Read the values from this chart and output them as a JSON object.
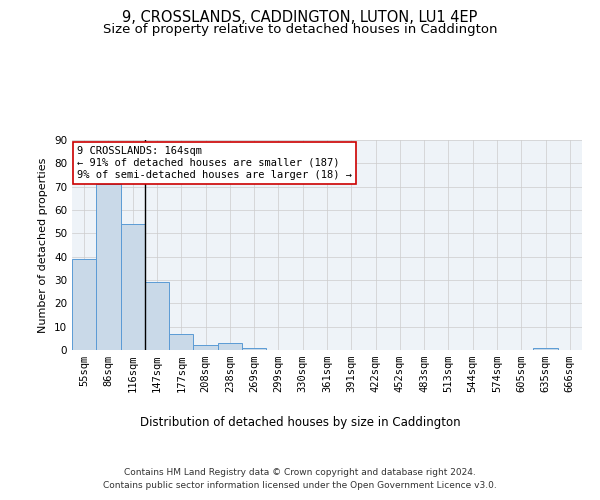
{
  "title_line1": "9, CROSSLANDS, CADDINGTON, LUTON, LU1 4EP",
  "title_line2": "Size of property relative to detached houses in Caddington",
  "xlabel": "Distribution of detached houses by size in Caddington",
  "ylabel": "Number of detached properties",
  "categories": [
    "55sqm",
    "86sqm",
    "116sqm",
    "147sqm",
    "177sqm",
    "208sqm",
    "238sqm",
    "269sqm",
    "299sqm",
    "330sqm",
    "361sqm",
    "391sqm",
    "422sqm",
    "452sqm",
    "483sqm",
    "513sqm",
    "544sqm",
    "574sqm",
    "605sqm",
    "635sqm",
    "666sqm"
  ],
  "values": [
    39,
    71,
    54,
    29,
    7,
    2,
    3,
    1,
    0,
    0,
    0,
    0,
    0,
    0,
    0,
    0,
    0,
    0,
    0,
    1,
    0
  ],
  "bar_color": "#c9d9e8",
  "bar_edge_color": "#5b9bd5",
  "marker_line_index": 3,
  "annotation_text": "9 CROSSLANDS: 164sqm\n← 91% of detached houses are smaller (187)\n9% of semi-detached houses are larger (18) →",
  "annotation_box_color": "#ffffff",
  "annotation_box_edge": "#cc0000",
  "ylim": [
    0,
    90
  ],
  "yticks": [
    0,
    10,
    20,
    30,
    40,
    50,
    60,
    70,
    80,
    90
  ],
  "grid_color": "#cccccc",
  "bg_color": "#eef3f8",
  "footer_line1": "Contains HM Land Registry data © Crown copyright and database right 2024.",
  "footer_line2": "Contains public sector information licensed under the Open Government Licence v3.0.",
  "title_fontsize": 10.5,
  "subtitle_fontsize": 9.5,
  "xlabel_fontsize": 8.5,
  "ylabel_fontsize": 8,
  "tick_fontsize": 7.5,
  "annot_fontsize": 7.5,
  "footer_fontsize": 6.5
}
